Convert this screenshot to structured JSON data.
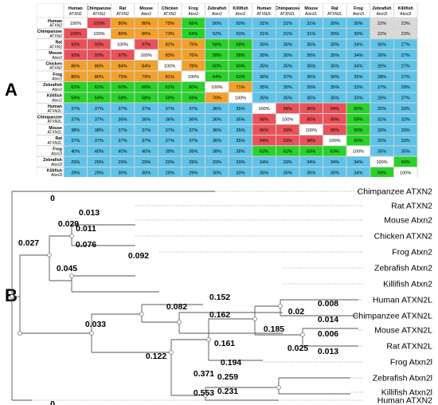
{
  "panel_a": {
    "label": "A",
    "column_headers": [
      [
        "Human",
        "ATXN2"
      ],
      [
        "Chimpanzee",
        "ATXN2"
      ],
      [
        "Rat",
        "ATXN2"
      ],
      [
        "Mouse",
        "Atxn2"
      ],
      [
        "Chicken",
        "ATXN2"
      ],
      [
        "Frog",
        "Atxn2"
      ],
      [
        "Zebrafish",
        "Atxn2"
      ],
      [
        "Killifish",
        "Atxn2"
      ],
      [
        "Human",
        "ATXN2L"
      ],
      [
        "Chimpanzee",
        "ATXN2L"
      ],
      [
        "Mouse",
        "Atxn2L"
      ],
      [
        "Rat",
        "ATXN2L"
      ],
      [
        "Frog",
        "Atxn2l"
      ],
      [
        "Zebrafish",
        "Atxn2l"
      ],
      [
        "Killifish",
        "Atxn2l"
      ]
    ],
    "row_headers": [
      [
        "Human",
        "ATXN2"
      ],
      [
        "Chimpanzee",
        "ATXN2"
      ],
      [
        "Rat",
        "ATXN2"
      ],
      [
        "Mouse",
        "Atxn2"
      ],
      [
        "Chicken",
        "ATXN2"
      ],
      [
        "Frog",
        "Atxn2"
      ],
      [
        "Zebrafish",
        "Atxn2"
      ],
      [
        "Killifish",
        "Atxn2"
      ],
      [
        "Human",
        "ATXN2L"
      ],
      [
        "Chimpanzee",
        "ATXN2L"
      ],
      [
        "Mouse",
        "ATXN2L"
      ],
      [
        "Rat",
        "ATXN2L"
      ],
      [
        "Frog",
        "Atxn2l"
      ],
      [
        "Zebrafish",
        "Atxn2l"
      ],
      [
        "Killifish",
        "Atxn2l"
      ]
    ],
    "values": [
      [
        "100%",
        "100%",
        "80%",
        "80%",
        "75%",
        "66%",
        "50%",
        "50%",
        "31%",
        "31%",
        "31%",
        "30%",
        "30%",
        "22%",
        "23%"
      ],
      [
        "100%",
        "100%",
        "80%",
        "80%",
        "73%",
        "64%",
        "52%",
        "50%",
        "31%",
        "31%",
        "31%",
        "30%",
        "30%",
        "22%",
        "23%"
      ],
      [
        "93%",
        "93%",
        "100%",
        "97%",
        "82%",
        "75%",
        "58%",
        "58%",
        "35%",
        "35%",
        "35%",
        "35%",
        "34%",
        "26%",
        "27%"
      ],
      [
        "93%",
        "93%",
        "97%",
        "100%",
        "83%",
        "76%",
        "58%",
        "58%",
        "35%",
        "35%",
        "35%",
        "35%",
        "34%",
        "26%",
        "27%"
      ],
      [
        "86%",
        "86%",
        "84%",
        "84%",
        "100%",
        "78%",
        "60%",
        "60%",
        "35%",
        "35%",
        "35%",
        "35%",
        "34%",
        "26%",
        "27%"
      ],
      [
        "80%",
        "80%",
        "79%",
        "79%",
        "81%",
        "100%",
        "64%",
        "62%",
        "36%",
        "37%",
        "36%",
        "36%",
        "35%",
        "28%",
        "27%"
      ],
      [
        "62%",
        "62%",
        "60%",
        "60%",
        "61%",
        "60%",
        "100%",
        "71%",
        "35%",
        "35%",
        "35%",
        "35%",
        "33%",
        "27%",
        "28%"
      ],
      [
        "59%",
        "59%",
        "58%",
        "58%",
        "59%",
        "59%",
        "70%",
        "100%",
        "35%",
        "35%",
        "35%",
        "35%",
        "33%",
        "26%",
        "27%"
      ],
      [
        "37%",
        "37%",
        "37%",
        "37%",
        "37%",
        "37%",
        "36%",
        "35%",
        "100%",
        "98%",
        "95%",
        "94%",
        "60%",
        "32%",
        "33%"
      ],
      [
        "37%",
        "37%",
        "36%",
        "36%",
        "36%",
        "36%",
        "36%",
        "35%",
        "98%",
        "100%",
        "90%",
        "90%",
        "59%",
        "31%",
        "32%"
      ],
      [
        "38%",
        "38%",
        "37%",
        "37%",
        "37%",
        "37%",
        "36%",
        "35%",
        "95%",
        "93%",
        "100%",
        "98%",
        "60%",
        "32%",
        "33%"
      ],
      [
        "37%",
        "37%",
        "37%",
        "37%",
        "37%",
        "37%",
        "36%",
        "35%",
        "94%",
        "93%",
        "98%",
        "100%",
        "60%",
        "32%",
        "33%"
      ],
      [
        "40%",
        "40%",
        "40%",
        "40%",
        "39%",
        "39%",
        "38%",
        "38%",
        "63%",
        "62%",
        "63%",
        "63%",
        "100%",
        "35%",
        "35%"
      ],
      [
        "29%",
        "29%",
        "29%",
        "29%",
        "29%",
        "29%",
        "29%",
        "29%",
        "34%",
        "33%",
        "34%",
        "34%",
        "34%",
        "100%",
        "60%"
      ],
      [
        "29%",
        "29%",
        "30%",
        "30%",
        "29%",
        "29%",
        "30%",
        "30%",
        "35%",
        "35%",
        "35%",
        "35%",
        "34%",
        "59%",
        "100%"
      ]
    ],
    "colors": {
      "high": "#e9525a",
      "mid": "#f2a12e",
      "green": "#2bd12b",
      "low": "#5fc3e8",
      "lowest": "#d9d9d9",
      "self": "#ffffff"
    }
  },
  "panel_b": {
    "label": "B",
    "tree_leaves": [
      "Chimpanzee ATXN2",
      "Rat ATXN2",
      "Mouse Atxn2",
      "Chicken ATXN2",
      "Frog Atxn2",
      "Zebrafish Atxn2",
      "Killifish Atxn2",
      "Human ATXN2L",
      "Chimpanzee ATXN2L",
      "Mouse ATXN2L",
      "Rat ATXN2L",
      "Frog Atxn2l",
      "Zebrafish Atxn2l",
      "Killifish Atxn2l",
      "Human ATXN2"
    ],
    "branch_lengths": [
      "0",
      "0.013",
      "0.029",
      "0.011",
      "0.027",
      "0.076",
      "0.045",
      "0.092",
      "0.152",
      "0.082",
      "0.162",
      "0.033",
      "0.008",
      "0.02",
      "0.014",
      "0.185",
      "0.006",
      "0.025",
      "0.013",
      "0.161",
      "0.122",
      "0.194",
      "0.259",
      "0.371",
      "0.231",
      "0.553",
      "0"
    ]
  }
}
